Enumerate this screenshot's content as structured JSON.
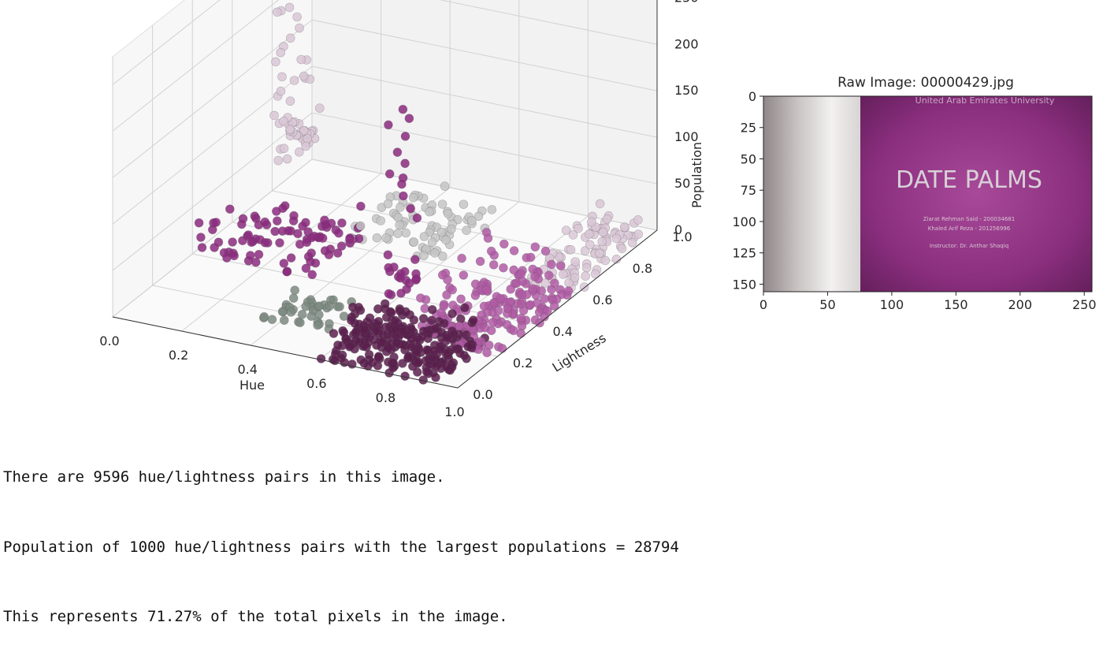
{
  "chart_data": [
    {
      "type": "scatter3d",
      "xlabel": "Hue",
      "ylabel": "Lightness",
      "zlabel": "Population",
      "xlim": [
        0.0,
        1.0
      ],
      "ylim": [
        0.0,
        1.0
      ],
      "zlim": [
        0,
        280
      ],
      "xticks": [
        "0.0",
        "0.2",
        "0.4",
        "0.6",
        "0.8",
        "1.0"
      ],
      "yticks": [
        "0.0",
        "0.2",
        "0.4",
        "0.6",
        "0.8",
        "1.0"
      ],
      "zticks": [
        "0",
        "50",
        "100",
        "150",
        "200",
        "250"
      ],
      "grid": true,
      "colors": {
        "dark": "#5a1e4e",
        "mid": "#8b2a7e",
        "light": "#b05ba4",
        "pale": "#d9c7d6",
        "gray": "#7d8a80",
        "lightgray": "#c4c4c4"
      },
      "clusters": [
        {
          "hue": [
            0.02,
            0.06
          ],
          "lightness": [
            0.75,
            0.95
          ],
          "population": [
            40,
            270
          ],
          "color": "pale",
          "count": 60
        },
        {
          "hue": [
            0.0,
            0.35
          ],
          "lightness": [
            0.4,
            0.7
          ],
          "population": [
            0,
            30
          ],
          "color": "mid",
          "count": 90
        },
        {
          "hue": [
            0.3,
            0.6
          ],
          "lightness": [
            0.6,
            0.9
          ],
          "population": [
            0,
            25
          ],
          "color": "lightgray",
          "count": 80
        },
        {
          "hue": [
            0.35,
            0.55
          ],
          "lightness": [
            0.15,
            0.3
          ],
          "population": [
            0,
            15
          ],
          "color": "gray",
          "count": 40
        },
        {
          "hue": [
            0.6,
            0.95
          ],
          "lightness": [
            0.0,
            0.25
          ],
          "population": [
            0,
            40
          ],
          "color": "dark",
          "count": 250
        },
        {
          "hue": [
            0.75,
            1.0
          ],
          "lightness": [
            0.2,
            0.6
          ],
          "population": [
            0,
            60
          ],
          "color": "light",
          "count": 180
        },
        {
          "hue": [
            0.85,
            1.0
          ],
          "lightness": [
            0.6,
            0.95
          ],
          "population": [
            0,
            30
          ],
          "color": "pale",
          "count": 90
        },
        {
          "hue": [
            0.72,
            0.78
          ],
          "lightness": [
            0.08,
            0.2
          ],
          "population": [
            60,
            260
          ],
          "color": "mid",
          "count": 30
        }
      ]
    },
    {
      "type": "image",
      "title": "Raw Image: 00000429.jpg",
      "xlim": [
        0,
        256
      ],
      "ylim": [
        0,
        156
      ],
      "xticks": [
        "0",
        "50",
        "100",
        "150",
        "200",
        "250"
      ],
      "yticks": [
        "0",
        "25",
        "50",
        "75",
        "100",
        "125",
        "150"
      ],
      "image_text": {
        "header": "United Arab Emirates University",
        "title": "DATE PALMS",
        "line1": "Ziarat Rehman Said - 200034681",
        "line2": "Khaled Arif Reza - 201256996",
        "line3": "Instructor: Dr. Anthar Shaqiq"
      }
    }
  ],
  "output_lines": [
    "There are 9596 hue/lightness pairs in this image.",
    "Population of 1000 hue/lightness pairs with the largest populations = 28794",
    "This represents 71.27% of the total pixels in the image."
  ]
}
